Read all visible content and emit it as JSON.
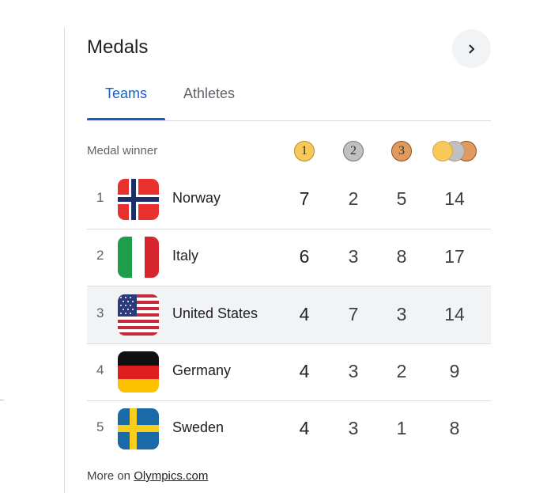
{
  "title": "Medals",
  "tabs": [
    {
      "label": "Teams",
      "active": true
    },
    {
      "label": "Athletes",
      "active": false
    }
  ],
  "header": {
    "label": "Medal winner",
    "gold": "1",
    "silver": "2",
    "bronze": "3"
  },
  "colors": {
    "accent": "#1a5fbf",
    "gold": "#f9c85b",
    "silver": "#c0c0c0",
    "bronze": "#e09a5e",
    "highlight": "#f1f3f4"
  },
  "rows": [
    {
      "rank": "1",
      "country": "Norway",
      "gold": "7",
      "silver": "2",
      "bronze": "5",
      "total": "14"
    },
    {
      "rank": "2",
      "country": "Italy",
      "gold": "6",
      "silver": "3",
      "bronze": "8",
      "total": "17"
    },
    {
      "rank": "3",
      "country": "United States",
      "gold": "4",
      "silver": "7",
      "bronze": "3",
      "total": "14"
    },
    {
      "rank": "4",
      "country": "Germany",
      "gold": "4",
      "silver": "3",
      "bronze": "2",
      "total": "9"
    },
    {
      "rank": "5",
      "country": "Sweden",
      "gold": "4",
      "silver": "3",
      "bronze": "1",
      "total": "8"
    }
  ],
  "footer": {
    "prefix": "More on ",
    "link": "Olympics.com"
  }
}
